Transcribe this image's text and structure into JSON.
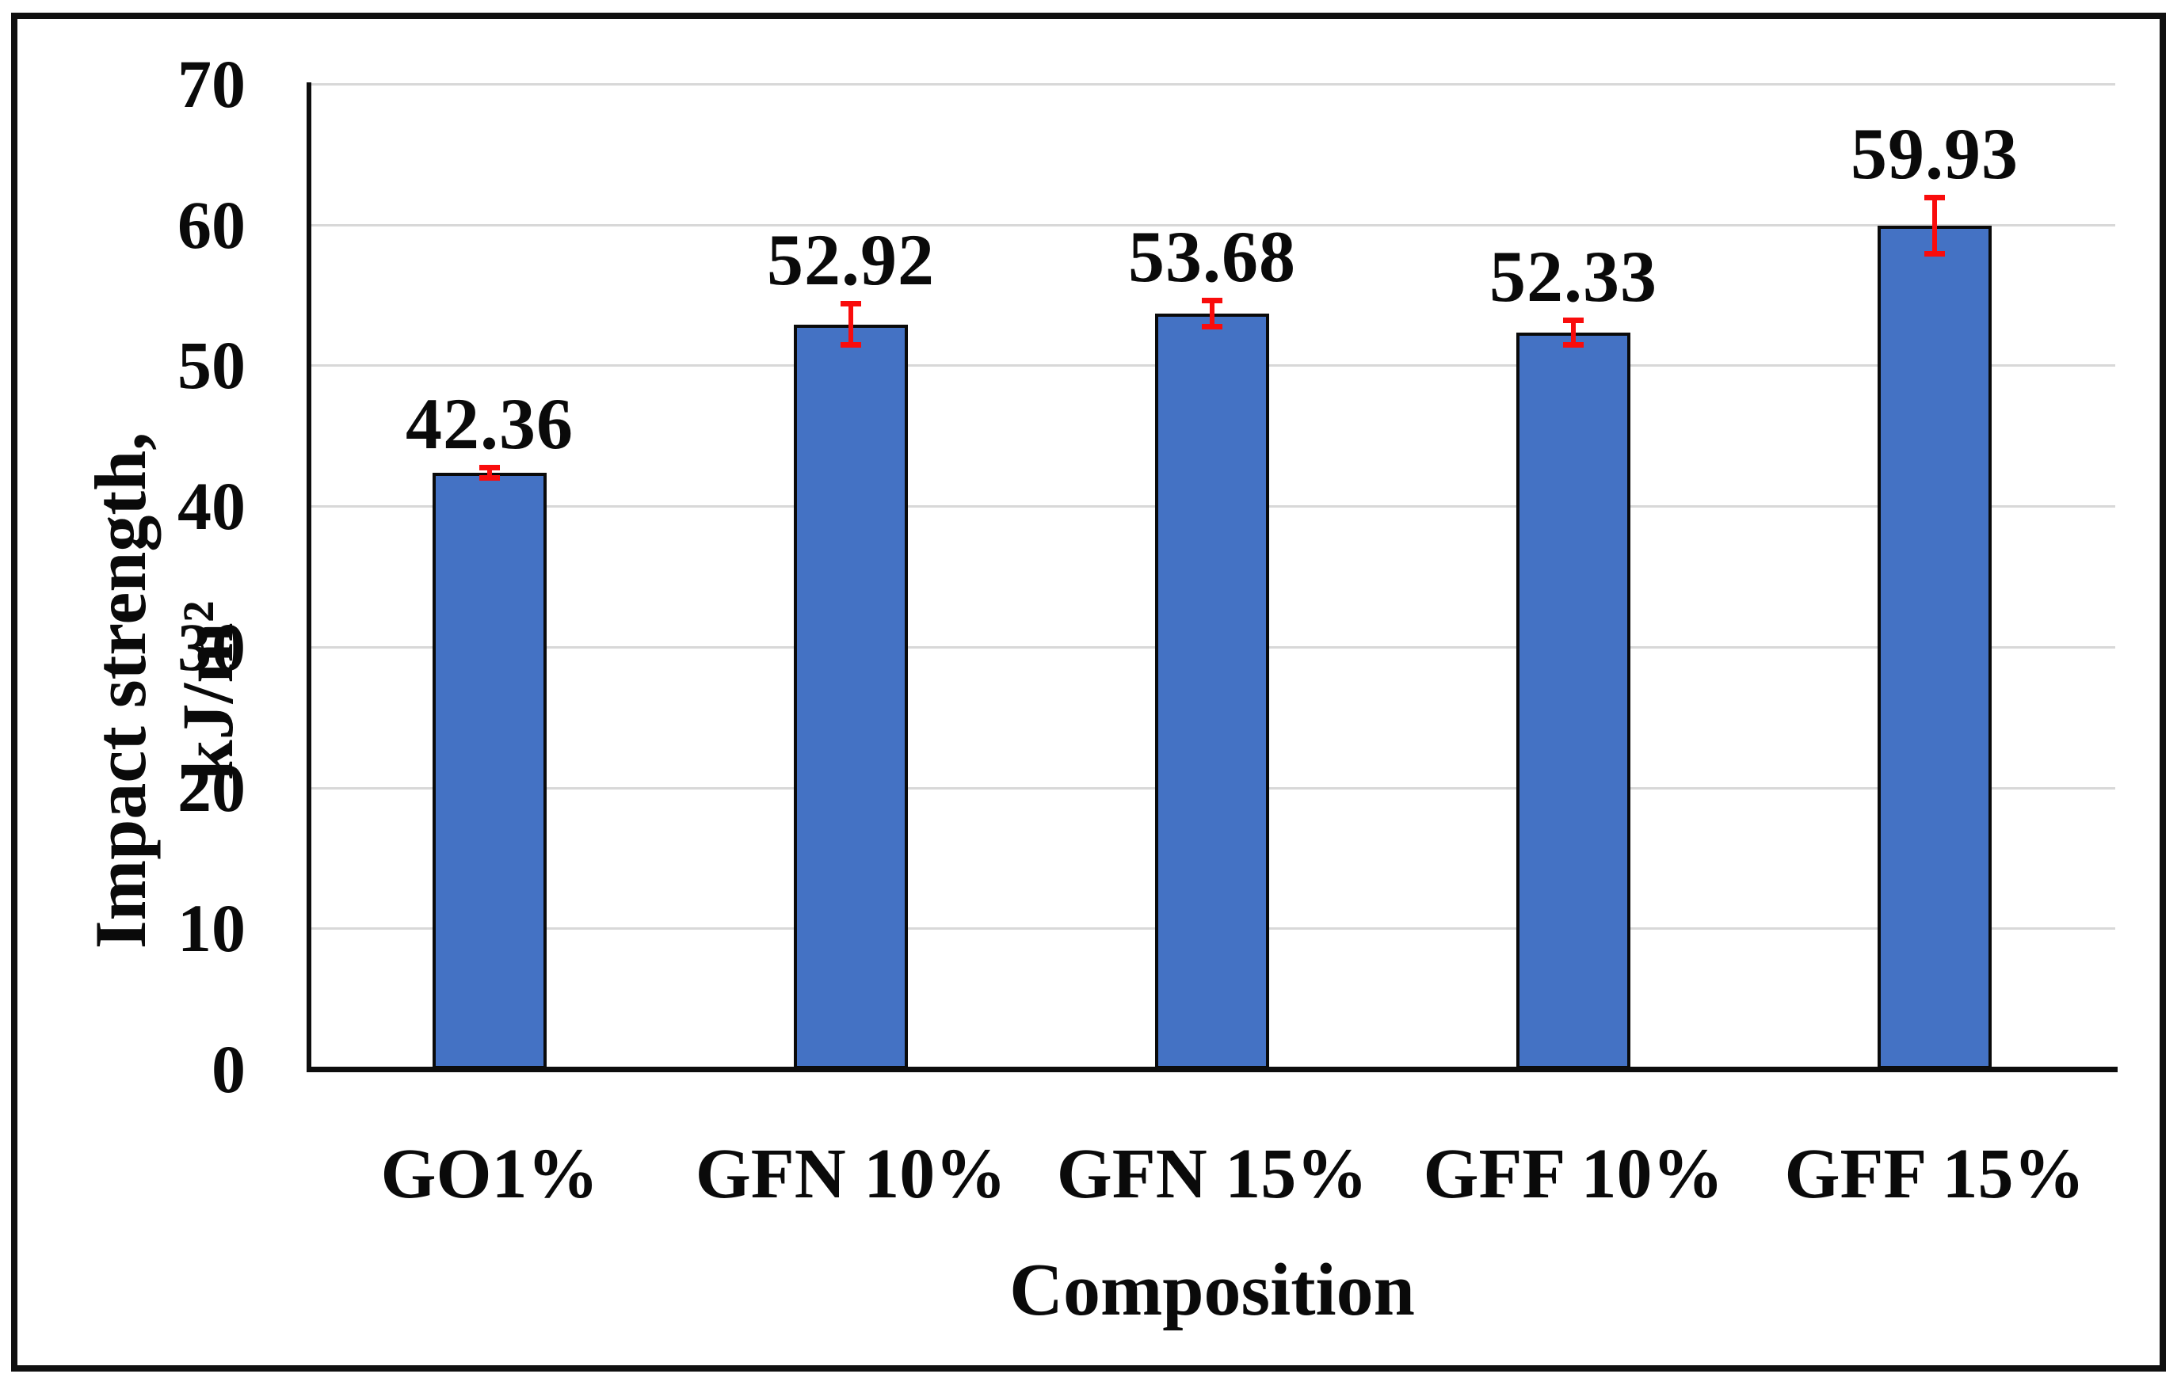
{
  "chart_data": {
    "type": "bar",
    "categories": [
      "GO1%",
      "GFN 10%",
      "GFN 15%",
      "GFF 10%",
      "GFF 15%"
    ],
    "values": [
      42.36,
      52.92,
      53.68,
      52.33,
      59.93
    ],
    "value_labels": [
      "42.36",
      "52.92",
      "53.68",
      "52.33",
      "59.93"
    ],
    "error_bars": [
      0.4,
      1.5,
      0.95,
      0.9,
      2.0
    ],
    "xlabel": "Composition",
    "ylabel": "Impact strength, kJ/m²",
    "y_ticks": [
      0,
      10,
      20,
      30,
      40,
      50,
      60,
      70
    ],
    "ylim": [
      0,
      70
    ],
    "grid": true,
    "legend": "none",
    "colors": {
      "bar_fill": "#4472C4",
      "bar_border": "#0A0A0A",
      "error_bar": "#F90C0C",
      "gridline": "#D8D8D8",
      "axis": "#0D0D0D",
      "text": "#0A0A0A",
      "background": "#FFFFFF",
      "frame": "#101010"
    }
  }
}
